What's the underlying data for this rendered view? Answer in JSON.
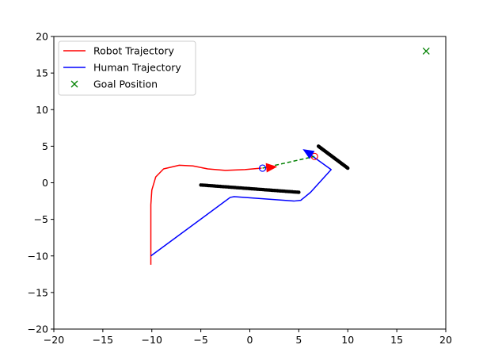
{
  "chart_data": {
    "type": "line",
    "title": "",
    "xlabel": "",
    "ylabel": "",
    "xlim": [
      -20,
      20
    ],
    "ylim": [
      -20,
      20
    ],
    "xticks": [
      -20,
      -15,
      -10,
      -5,
      0,
      5,
      10,
      15,
      20
    ],
    "yticks": [
      -20,
      -15,
      -10,
      -5,
      0,
      5,
      10,
      15,
      20
    ],
    "xtick_labels": [
      "−20",
      "−15",
      "−10",
      "−5",
      "0",
      "5",
      "10",
      "15",
      "20"
    ],
    "ytick_labels": [
      "−20",
      "−15",
      "−10",
      "−5",
      "0",
      "5",
      "10",
      "15",
      "20"
    ],
    "grid": false,
    "legend_position": "upper-left",
    "series": [
      {
        "name": "Robot Trajectory",
        "color": "#ff0000",
        "style": "line",
        "points": [
          [
            -10.1,
            -11.2
          ],
          [
            -10.1,
            -3
          ],
          [
            -10.0,
            -1.0
          ],
          [
            -9.6,
            0.8
          ],
          [
            -8.8,
            1.9
          ],
          [
            -7.2,
            2.4
          ],
          [
            -5.8,
            2.3
          ],
          [
            -4.3,
            1.9
          ],
          [
            -2.5,
            1.7
          ],
          [
            -0.5,
            1.8
          ],
          [
            1.2,
            2.0
          ]
        ]
      },
      {
        "name": "Human Trajectory",
        "color": "#0000ff",
        "style": "line",
        "points": [
          [
            -10.1,
            -10.0
          ],
          [
            -2.0,
            -2.0
          ],
          [
            -1.6,
            -1.9
          ],
          [
            4.5,
            -2.5
          ],
          [
            5.2,
            -2.4
          ],
          [
            6.2,
            -1.3
          ],
          [
            8.3,
            1.8
          ],
          [
            5.6,
            4.4
          ]
        ]
      },
      {
        "name": "Goal Position",
        "color": "#008000",
        "style": "marker-x",
        "points": [
          [
            18,
            18
          ]
        ]
      }
    ],
    "obstacles": [
      {
        "name": "obstacle-horizontal",
        "color": "#000000",
        "from": [
          -5,
          -0.3
        ],
        "to": [
          5,
          -1.3
        ]
      },
      {
        "name": "obstacle-diagonal",
        "color": "#000000",
        "from": [
          7,
          5
        ],
        "to": [
          10,
          2
        ]
      }
    ],
    "markers": [
      {
        "name": "robot-position-circle",
        "color": "#0000ff",
        "point": [
          1.3,
          2.0
        ]
      },
      {
        "name": "human-position-circle",
        "color": "#ff0000",
        "point": [
          6.6,
          3.6
        ]
      }
    ],
    "arrows": [
      {
        "name": "robot-heading-arrow",
        "color": "#ff0000",
        "from": [
          1.3,
          2.0
        ],
        "to": [
          2.8,
          2.2
        ]
      },
      {
        "name": "human-heading-arrow",
        "color": "#0000ff",
        "from": [
          6.6,
          3.6
        ],
        "to": [
          5.4,
          4.6
        ]
      }
    ],
    "links": [
      {
        "name": "robot-human-link",
        "color": "#008000",
        "dashed": true,
        "from": [
          1.3,
          2.0
        ],
        "to": [
          6.6,
          3.6
        ]
      }
    ]
  }
}
